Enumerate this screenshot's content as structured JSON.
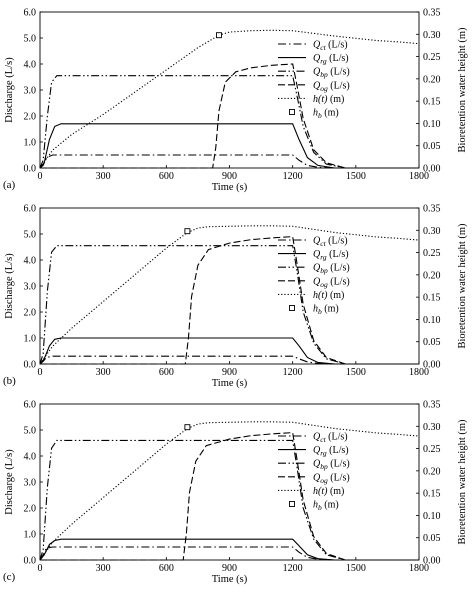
{
  "chart_data": [
    {
      "type": "line",
      "panel_label": "(a)",
      "xlabel": "Time (s)",
      "ylabel": "Discharge (L/s)",
      "y2label": "Bioretention water height (m)",
      "xlim": [
        0,
        1800
      ],
      "ylim": [
        0,
        6
      ],
      "y2lim": [
        0,
        0.35
      ],
      "xticks": [
        "0",
        "300",
        "600",
        "900",
        "1200",
        "1500",
        "1800"
      ],
      "yticks": [
        "0.0",
        "1.0",
        "2.0",
        "3.0",
        "4.0",
        "5.0",
        "6.0"
      ],
      "y2ticks": [
        "0.00",
        "0.05",
        "0.10",
        "0.15",
        "0.20",
        "0.25",
        "0.30",
        "0.35"
      ],
      "legend_position": "right",
      "series": [
        {
          "name": "Q_ct (L/s)",
          "dash": "dashdot",
          "axis": "left",
          "x": [
            0,
            15,
            30,
            60,
            1200,
            1230,
            1270,
            1320,
            1400,
            1800
          ],
          "y": [
            0,
            0.1,
            0.4,
            0.5,
            0.5,
            0.3,
            0.1,
            0.03,
            0,
            0
          ]
        },
        {
          "name": "Q_rg (L/s)",
          "dash": "solid",
          "axis": "left",
          "x": [
            0,
            20,
            45,
            70,
            100,
            1200,
            1230,
            1270,
            1320,
            1400,
            1800
          ],
          "y": [
            0,
            0.2,
            1.1,
            1.6,
            1.7,
            1.7,
            1.1,
            0.4,
            0.1,
            0,
            0
          ]
        },
        {
          "name": "Q_bp (L/s)",
          "dash": "dashdotdot",
          "axis": "left",
          "x": [
            0,
            15,
            35,
            55,
            80,
            1200,
            1220,
            1250,
            1300,
            1360,
            1450,
            1800
          ],
          "y": [
            0,
            0.3,
            2.0,
            3.3,
            3.55,
            3.55,
            2.8,
            1.6,
            0.6,
            0.15,
            0,
            0
          ]
        },
        {
          "name": "Q_og (L/s)",
          "dash": "dashed",
          "axis": "left",
          "x": [
            0,
            820,
            835,
            850,
            880,
            930,
            1000,
            1100,
            1200,
            1220,
            1250,
            1300,
            1360,
            1450,
            1800
          ],
          "y": [
            0,
            0,
            0.8,
            2.2,
            3.3,
            3.7,
            3.85,
            3.95,
            4.0,
            3.2,
            1.9,
            0.7,
            0.2,
            0,
            0
          ]
        },
        {
          "name": "h(t) (m)",
          "dash": "dotted",
          "axis": "right",
          "x": [
            0,
            30,
            60,
            150,
            300,
            450,
            600,
            750,
            850,
            900,
            1000,
            1100,
            1200,
            1300,
            1400,
            1500,
            1600,
            1700,
            1800
          ],
          "y": [
            0,
            0.02,
            0.04,
            0.075,
            0.12,
            0.17,
            0.22,
            0.27,
            0.298,
            0.305,
            0.308,
            0.309,
            0.308,
            0.302,
            0.296,
            0.291,
            0.286,
            0.283,
            0.279
          ]
        },
        {
          "name": "h_b (m)",
          "marker": "square",
          "axis": "right",
          "x": [
            850
          ],
          "y": [
            0.298
          ]
        }
      ]
    },
    {
      "type": "line",
      "panel_label": "(b)",
      "xlabel": "Time (s)",
      "ylabel": "Discharge (L/s)",
      "y2label": "Bioretention water height (m)",
      "xlim": [
        0,
        1800
      ],
      "ylim": [
        0,
        6
      ],
      "y2lim": [
        0,
        0.35
      ],
      "xticks": [
        "0",
        "300",
        "600",
        "900",
        "1200",
        "1500",
        "1800"
      ],
      "yticks": [
        "0.0",
        "1.0",
        "2.0",
        "3.0",
        "4.0",
        "5.0",
        "6.0"
      ],
      "y2ticks": [
        "0.00",
        "0.05",
        "0.10",
        "0.15",
        "0.20",
        "0.25",
        "0.30",
        "0.35"
      ],
      "legend_position": "right",
      "series": [
        {
          "name": "Q_ct (L/s)",
          "dash": "dashdot",
          "axis": "left",
          "x": [
            0,
            15,
            30,
            60,
            1200,
            1230,
            1270,
            1320,
            1400,
            1800
          ],
          "y": [
            0,
            0.1,
            0.25,
            0.3,
            0.3,
            0.2,
            0.08,
            0.02,
            0,
            0
          ]
        },
        {
          "name": "Q_rg (L/s)",
          "dash": "solid",
          "axis": "left",
          "x": [
            0,
            20,
            45,
            70,
            100,
            1200,
            1230,
            1270,
            1320,
            1400,
            1800
          ],
          "y": [
            0,
            0.2,
            0.7,
            0.95,
            1.0,
            1.0,
            0.7,
            0.25,
            0.06,
            0,
            0
          ]
        },
        {
          "name": "Q_bp (L/s)",
          "dash": "dashdotdot",
          "axis": "left",
          "x": [
            0,
            15,
            35,
            55,
            80,
            1200,
            1220,
            1250,
            1300,
            1360,
            1450,
            1800
          ],
          "y": [
            0,
            0.4,
            2.8,
            4.3,
            4.55,
            4.55,
            3.6,
            2.0,
            0.8,
            0.2,
            0,
            0
          ]
        },
        {
          "name": "Q_og (L/s)",
          "dash": "dashed",
          "axis": "left",
          "x": [
            0,
            690,
            705,
            720,
            750,
            800,
            900,
            1000,
            1100,
            1200,
            1220,
            1250,
            1300,
            1360,
            1450,
            1800
          ],
          "y": [
            0,
            0,
            1.0,
            2.6,
            3.8,
            4.4,
            4.65,
            4.78,
            4.85,
            4.9,
            3.9,
            2.3,
            0.9,
            0.25,
            0,
            0
          ]
        },
        {
          "name": "h(t) (m)",
          "dash": "dotted",
          "axis": "right",
          "x": [
            0,
            30,
            60,
            150,
            300,
            450,
            600,
            700,
            750,
            800,
            900,
            1000,
            1100,
            1200,
            1300,
            1400,
            1500,
            1600,
            1700,
            1800
          ],
          "y": [
            0,
            0.02,
            0.04,
            0.08,
            0.14,
            0.2,
            0.26,
            0.295,
            0.305,
            0.308,
            0.309,
            0.31,
            0.31,
            0.309,
            0.302,
            0.295,
            0.29,
            0.285,
            0.282,
            0.278
          ]
        },
        {
          "name": "h_b (m)",
          "marker": "square",
          "axis": "right",
          "x": [
            700
          ],
          "y": [
            0.298
          ]
        }
      ]
    },
    {
      "type": "line",
      "panel_label": "(c)",
      "xlabel": "Time (s)",
      "ylabel": "Discharge (L/s)",
      "y2label": "Bioretention water height (m)",
      "xlim": [
        0,
        1800
      ],
      "ylim": [
        0,
        6
      ],
      "y2lim": [
        0,
        0.35
      ],
      "xticks": [
        "0",
        "300",
        "600",
        "900",
        "1200",
        "1500",
        "1800"
      ],
      "yticks": [
        "0.0",
        "1.0",
        "2.0",
        "3.0",
        "4.0",
        "5.0",
        "6.0"
      ],
      "y2ticks": [
        "0.00",
        "0.05",
        "0.10",
        "0.15",
        "0.20",
        "0.25",
        "0.30",
        "0.35"
      ],
      "legend_position": "right",
      "series": [
        {
          "name": "Q_ct (L/s)",
          "dash": "dashdot",
          "axis": "left",
          "x": [
            0,
            15,
            30,
            60,
            1200,
            1230,
            1270,
            1320,
            1400,
            1800
          ],
          "y": [
            0,
            0.2,
            0.45,
            0.5,
            0.5,
            0.3,
            0.1,
            0.03,
            0,
            0
          ]
        },
        {
          "name": "Q_rg (L/s)",
          "dash": "solid",
          "axis": "left",
          "x": [
            0,
            20,
            45,
            70,
            100,
            1200,
            1230,
            1270,
            1320,
            1400,
            1800
          ],
          "y": [
            0,
            0.2,
            0.6,
            0.75,
            0.8,
            0.8,
            0.55,
            0.2,
            0.05,
            0,
            0
          ]
        },
        {
          "name": "Q_bp (L/s)",
          "dash": "dashdotdot",
          "axis": "left",
          "x": [
            0,
            15,
            35,
            55,
            80,
            1200,
            1220,
            1250,
            1300,
            1360,
            1450,
            1800
          ],
          "y": [
            0,
            0.4,
            2.8,
            4.3,
            4.6,
            4.6,
            3.6,
            2.0,
            0.8,
            0.2,
            0,
            0
          ]
        },
        {
          "name": "Q_og (L/s)",
          "dash": "dashed",
          "axis": "left",
          "x": [
            0,
            680,
            695,
            710,
            740,
            790,
            900,
            1000,
            1100,
            1200,
            1220,
            1250,
            1300,
            1360,
            1450,
            1800
          ],
          "y": [
            0,
            0,
            1.0,
            2.6,
            3.8,
            4.4,
            4.65,
            4.78,
            4.85,
            4.9,
            3.9,
            2.3,
            0.9,
            0.25,
            0,
            0
          ]
        },
        {
          "name": "h(t) (m)",
          "dash": "dotted",
          "axis": "right",
          "x": [
            0,
            30,
            60,
            150,
            300,
            450,
            600,
            700,
            750,
            800,
            900,
            1000,
            1100,
            1200,
            1300,
            1400,
            1500,
            1600,
            1700,
            1800
          ],
          "y": [
            0,
            0.02,
            0.04,
            0.08,
            0.14,
            0.2,
            0.26,
            0.295,
            0.305,
            0.308,
            0.309,
            0.31,
            0.31,
            0.309,
            0.302,
            0.295,
            0.29,
            0.285,
            0.282,
            0.278
          ]
        },
        {
          "name": "h_b (m)",
          "marker": "square",
          "axis": "right",
          "x": [
            700
          ],
          "y": [
            0.298
          ]
        }
      ]
    }
  ]
}
